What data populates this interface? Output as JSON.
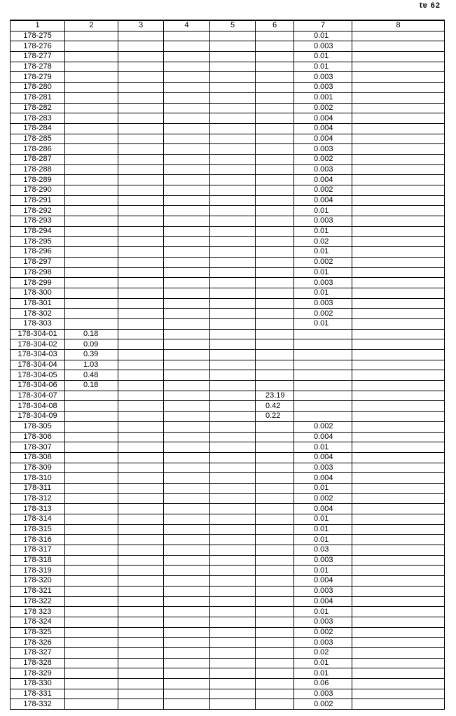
{
  "page_number": "tɐ 62",
  "table": {
    "headers": [
      "1",
      "2",
      "3",
      "4",
      "5",
      "6",
      "7",
      "8"
    ],
    "rows": [
      [
        "178-275",
        "",
        "",
        "",
        "",
        "",
        "0.01",
        ""
      ],
      [
        "178-276",
        "",
        "",
        "",
        "",
        "",
        "0.003",
        ""
      ],
      [
        "178-277",
        "",
        "",
        "",
        "",
        "",
        "0.01",
        ""
      ],
      [
        "178-278",
        "",
        "",
        "",
        "",
        "",
        "0.01",
        ""
      ],
      [
        "178-279",
        "",
        "",
        "",
        "",
        "",
        "0.003",
        ""
      ],
      [
        "178-280",
        "",
        "",
        "",
        "",
        "",
        "0.003",
        ""
      ],
      [
        "178-281",
        "",
        "",
        "",
        "",
        "",
        "0.001",
        ""
      ],
      [
        "178-282",
        "",
        "",
        "",
        "",
        "",
        "0.002",
        ""
      ],
      [
        "178-283",
        "",
        "",
        "",
        "",
        "",
        "0.004",
        ""
      ],
      [
        "178-284",
        "",
        "",
        "",
        "",
        "",
        "0.004",
        ""
      ],
      [
        "178-285",
        "",
        "",
        "",
        "",
        "",
        "0.004",
        ""
      ],
      [
        "178-286",
        "",
        "",
        "",
        "",
        "",
        "0.003",
        ""
      ],
      [
        "178-287",
        "",
        "",
        "",
        "",
        "",
        "0.002",
        ""
      ],
      [
        "178-288",
        "",
        "",
        "",
        "",
        "",
        "0.003",
        ""
      ],
      [
        "178-289",
        "",
        "",
        "",
        "",
        "",
        "0.004",
        ""
      ],
      [
        "178-290",
        "",
        "",
        "",
        "",
        "",
        "0.002",
        ""
      ],
      [
        "178-291",
        "",
        "",
        "",
        "",
        "",
        "0.004",
        ""
      ],
      [
        "178-292",
        "",
        "",
        "",
        "",
        "",
        "0.01",
        ""
      ],
      [
        "178-293",
        "",
        "",
        "",
        "",
        "",
        "0.003",
        ""
      ],
      [
        "178-294",
        "",
        "",
        "",
        "",
        "",
        "0.01",
        ""
      ],
      [
        "178-295",
        "",
        "",
        "",
        "",
        "",
        "0.02",
        ""
      ],
      [
        "178-296",
        "",
        "",
        "",
        "",
        "",
        "0.01",
        ""
      ],
      [
        "178-297",
        "",
        "",
        "",
        "",
        "",
        "0.002",
        ""
      ],
      [
        "178-298",
        "",
        "",
        "",
        "",
        "",
        "0.01",
        ""
      ],
      [
        "178-299",
        "",
        "",
        "",
        "",
        "",
        "0.003",
        ""
      ],
      [
        "178-300",
        "",
        "",
        "",
        "",
        "",
        "0.01",
        ""
      ],
      [
        "178-301",
        "",
        "",
        "",
        "",
        "",
        "0.003",
        ""
      ],
      [
        "178-302",
        "",
        "",
        "",
        "",
        "",
        "0.002",
        ""
      ],
      [
        "178-303",
        "",
        "",
        "",
        "",
        "",
        "0.01",
        ""
      ],
      [
        "178-304-01",
        "0.18",
        "",
        "",
        "",
        "",
        "",
        ""
      ],
      [
        "178-304-02",
        "0.09",
        "",
        "",
        "",
        "",
        "",
        ""
      ],
      [
        "178-304-03",
        "0.39",
        "",
        "",
        "",
        "",
        "",
        ""
      ],
      [
        "178-304-04",
        "1.03",
        "",
        "",
        "",
        "",
        "",
        ""
      ],
      [
        "178-304-05",
        "0.48",
        "",
        "",
        "",
        "",
        "",
        ""
      ],
      [
        "178-304-06",
        "0.18",
        "",
        "",
        "",
        "",
        "",
        ""
      ],
      [
        "178-304-07",
        "",
        "",
        "",
        "",
        "23.19",
        "",
        ""
      ],
      [
        "178-304-08",
        "",
        "",
        "",
        "",
        "0.42",
        "",
        ""
      ],
      [
        "178-304-09",
        "",
        "",
        "",
        "",
        "0.22",
        "",
        ""
      ],
      [
        "178-305",
        "",
        "",
        "",
        "",
        "",
        "0.002",
        ""
      ],
      [
        "178-306",
        "",
        "",
        "",
        "",
        "",
        "0.004",
        ""
      ],
      [
        "178-307",
        "",
        "",
        "",
        "",
        "",
        "0.01",
        ""
      ],
      [
        "178-308",
        "",
        "",
        "",
        "",
        "",
        "0.004",
        ""
      ],
      [
        "178-309",
        "",
        "",
        "",
        "",
        "",
        "0.003",
        ""
      ],
      [
        "178-310",
        "",
        "",
        "",
        "",
        "",
        "0.004",
        ""
      ],
      [
        "178-311",
        "",
        "",
        "",
        "",
        "",
        "0.01",
        ""
      ],
      [
        "178-312",
        "",
        "",
        "",
        "",
        "",
        "0.002",
        ""
      ],
      [
        "178-313",
        "",
        "",
        "",
        "",
        "",
        "0.004",
        ""
      ],
      [
        "178-314",
        "",
        "",
        "",
        "",
        "",
        "0.01",
        ""
      ],
      [
        "178-315",
        "",
        "",
        "",
        "",
        "",
        "0.01",
        ""
      ],
      [
        "178-316",
        "",
        "",
        "",
        "",
        "",
        "0.01",
        ""
      ],
      [
        "178-317",
        "",
        "",
        "",
        "",
        "",
        "0.03",
        ""
      ],
      [
        "178-318",
        "",
        "",
        "",
        "",
        "",
        "0.003",
        ""
      ],
      [
        "178-319",
        "",
        "",
        "",
        "",
        "",
        "0.01",
        ""
      ],
      [
        "178-320",
        "",
        "",
        "",
        "",
        "",
        "0.004",
        ""
      ],
      [
        "178-321",
        "",
        "",
        "",
        "",
        "",
        "0.003",
        ""
      ],
      [
        "178-322",
        "",
        "",
        "",
        "",
        "",
        "0.004",
        ""
      ],
      [
        "178 323",
        "",
        "",
        "",
        "",
        "",
        "0.01",
        ""
      ],
      [
        "178-324",
        "",
        "",
        "",
        "",
        "",
        "0.003",
        ""
      ],
      [
        "178-325",
        "",
        "",
        "",
        "",
        "",
        "0.002",
        ""
      ],
      [
        "178-326",
        "",
        "",
        "",
        "",
        "",
        "0.003",
        ""
      ],
      [
        "178-327",
        "",
        "",
        "",
        "",
        "",
        "0.02",
        ""
      ],
      [
        "178-328",
        "",
        "",
        "",
        "",
        "",
        "0.01",
        ""
      ],
      [
        "178-329",
        "",
        "",
        "",
        "",
        "",
        "0.01",
        ""
      ],
      [
        "178-330",
        "",
        "",
        "",
        "",
        "",
        "0.06",
        ""
      ],
      [
        "178-331",
        "",
        "",
        "",
        "",
        "",
        "0.003",
        ""
      ],
      [
        "178-332",
        "",
        "",
        "",
        "",
        "",
        "0.002",
        ""
      ]
    ]
  }
}
